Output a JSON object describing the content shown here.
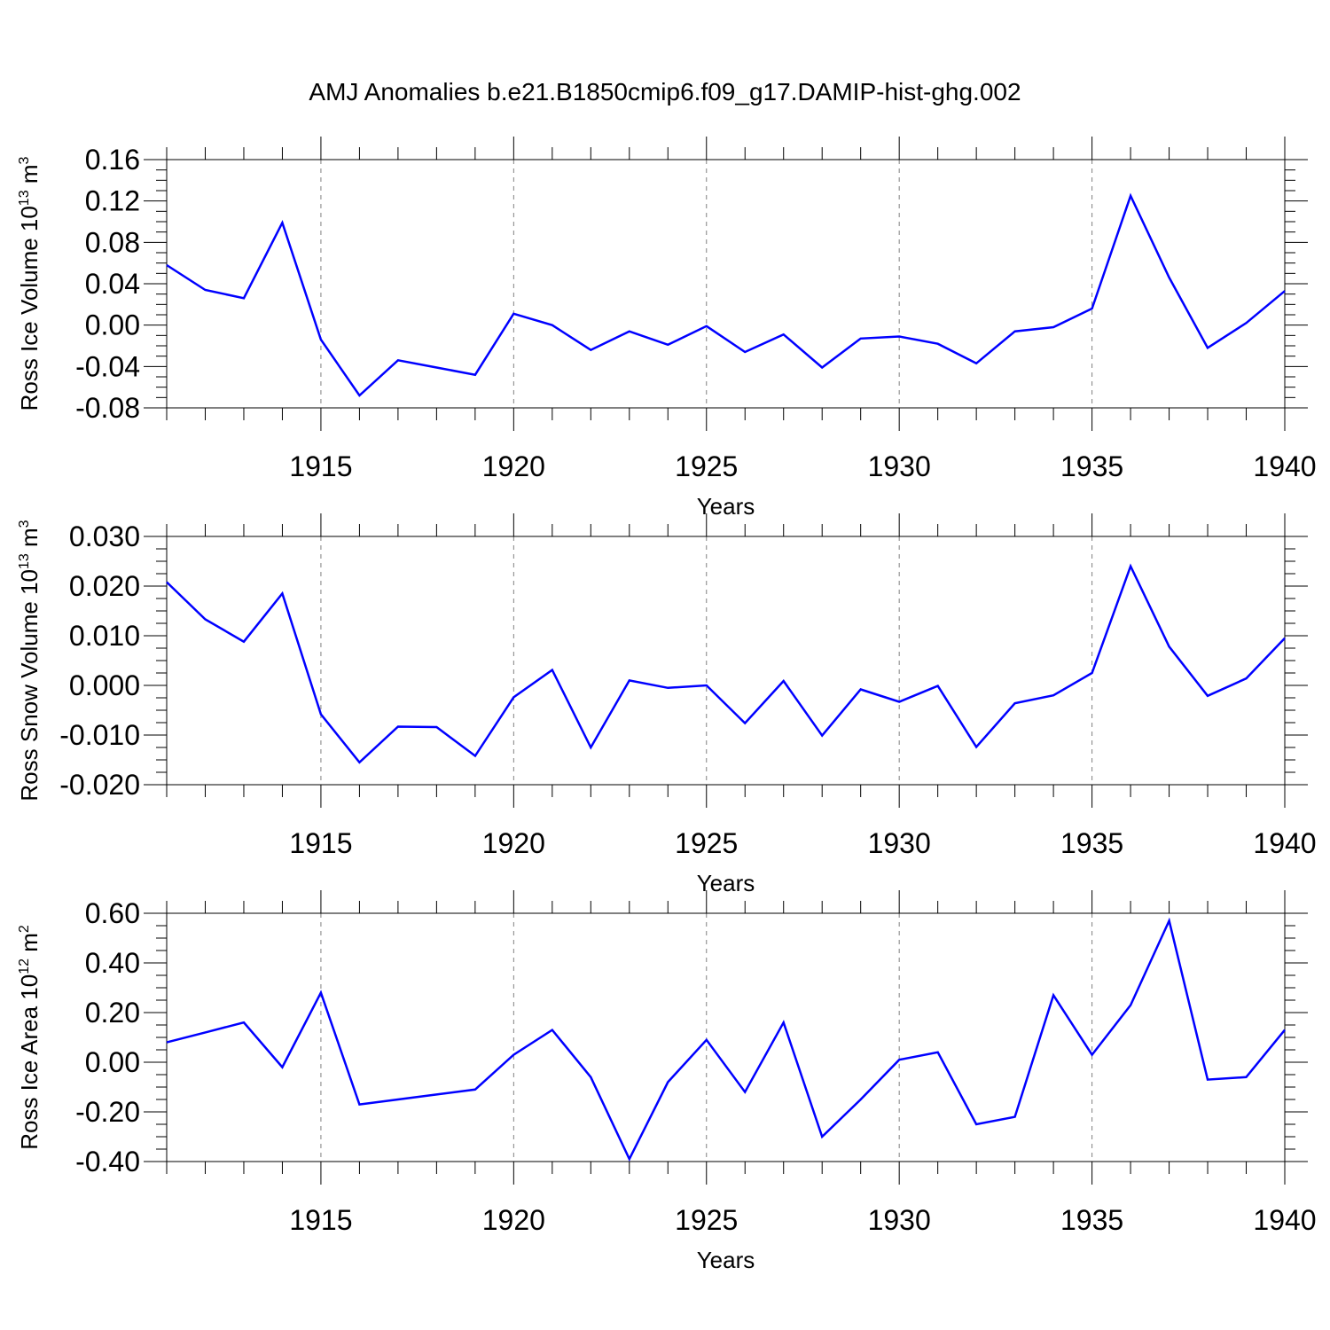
{
  "title": "AMJ Anomalies b.e21.B1850cmip6.f09_g17.DAMIP-hist-ghg.002",
  "colors": {
    "line": "#0000ff",
    "axis": "#000000",
    "grid": "#808080"
  },
  "chart_data": [
    {
      "type": "line",
      "ylabel": "Ross Ice Volume 10",
      "ylabel_sup": "13",
      "ylabel_unit": "m",
      "ylabel_unit_sup": "3",
      "xlabel": "Years",
      "xlim": [
        1911,
        1940
      ],
      "ylim": [
        -0.08,
        0.16
      ],
      "yticks": [
        -0.08,
        -0.04,
        0.0,
        0.04,
        0.08,
        0.12,
        0.16
      ],
      "ytick_labels": [
        "-0.08",
        "-0.04",
        "0.00",
        "0.04",
        "0.08",
        "0.12",
        "0.16"
      ],
      "xticks": [
        1915,
        1920,
        1925,
        1930,
        1935,
        1940
      ],
      "xtick_labels": [
        "1915",
        "1920",
        "1925",
        "1930",
        "1935",
        "1940"
      ],
      "grid": "vertical dashed at major x ticks",
      "x": [
        1911,
        1912,
        1913,
        1914,
        1915,
        1916,
        1917,
        1918,
        1919,
        1920,
        1921,
        1922,
        1923,
        1924,
        1925,
        1926,
        1927,
        1928,
        1929,
        1930,
        1931,
        1932,
        1933,
        1934,
        1935,
        1936,
        1937,
        1938,
        1939,
        1940
      ],
      "values": [
        0.058,
        0.034,
        0.026,
        0.099,
        -0.014,
        -0.068,
        -0.034,
        -0.041,
        -0.048,
        0.011,
        0.0,
        -0.024,
        -0.006,
        -0.019,
        -0.001,
        -0.026,
        -0.009,
        -0.041,
        -0.013,
        -0.011,
        -0.018,
        -0.037,
        -0.006,
        -0.002,
        0.016,
        0.125,
        0.046,
        -0.022,
        0.002,
        0.033
      ]
    },
    {
      "type": "line",
      "ylabel": "Ross Snow Volume 10",
      "ylabel_sup": "13",
      "ylabel_unit": "m",
      "ylabel_unit_sup": "3",
      "xlabel": "Years",
      "xlim": [
        1911,
        1940
      ],
      "ylim": [
        -0.02,
        0.03
      ],
      "yticks": [
        -0.02,
        -0.01,
        0.0,
        0.01,
        0.02,
        0.03
      ],
      "ytick_labels": [
        "-0.020",
        "-0.010",
        "0.000",
        "0.010",
        "0.020",
        "0.030"
      ],
      "xticks": [
        1915,
        1920,
        1925,
        1930,
        1935,
        1940
      ],
      "xtick_labels": [
        "1915",
        "1920",
        "1925",
        "1930",
        "1935",
        "1940"
      ],
      "grid": "vertical dashed at major x ticks",
      "x": [
        1911,
        1912,
        1913,
        1914,
        1915,
        1916,
        1917,
        1918,
        1919,
        1920,
        1921,
        1922,
        1923,
        1924,
        1925,
        1926,
        1927,
        1928,
        1929,
        1930,
        1931,
        1932,
        1933,
        1934,
        1935,
        1936,
        1937,
        1938,
        1939,
        1940
      ],
      "values": [
        0.0208,
        0.0133,
        0.0088,
        0.0185,
        -0.0058,
        -0.0155,
        -0.0083,
        -0.0084,
        -0.0142,
        -0.0024,
        0.0031,
        -0.0125,
        0.001,
        -0.0005,
        0.0,
        -0.0076,
        0.0009,
        -0.0101,
        -0.0008,
        -0.0033,
        -0.0001,
        -0.0124,
        -0.0036,
        -0.002,
        0.0025,
        0.024,
        0.0078,
        -0.0021,
        0.0014,
        0.0095
      ]
    },
    {
      "type": "line",
      "ylabel": "Ross Ice Area 10",
      "ylabel_sup": "12",
      "ylabel_unit": "m",
      "ylabel_unit_sup": "2",
      "xlabel": "Years",
      "xlim": [
        1911,
        1940
      ],
      "ylim": [
        -0.4,
        0.6
      ],
      "yticks": [
        -0.4,
        -0.2,
        0.0,
        0.2,
        0.4,
        0.6
      ],
      "ytick_labels": [
        "-0.40",
        "-0.20",
        "0.00",
        "0.20",
        "0.40",
        "0.60"
      ],
      "xticks": [
        1915,
        1920,
        1925,
        1930,
        1935,
        1940
      ],
      "xtick_labels": [
        "1915",
        "1920",
        "1925",
        "1930",
        "1935",
        "1940"
      ],
      "grid": "vertical dashed at major x ticks",
      "x": [
        1911,
        1912,
        1913,
        1914,
        1915,
        1916,
        1917,
        1918,
        1919,
        1920,
        1921,
        1922,
        1923,
        1924,
        1925,
        1926,
        1927,
        1928,
        1929,
        1930,
        1931,
        1932,
        1933,
        1934,
        1935,
        1936,
        1937,
        1938,
        1939,
        1940
      ],
      "values": [
        0.08,
        0.12,
        0.16,
        -0.02,
        0.28,
        -0.17,
        -0.15,
        -0.13,
        -0.11,
        0.03,
        0.13,
        -0.06,
        -0.39,
        -0.08,
        0.09,
        -0.12,
        0.16,
        -0.3,
        -0.15,
        0.01,
        0.04,
        -0.25,
        -0.22,
        0.27,
        0.03,
        0.23,
        0.57,
        -0.07,
        -0.06,
        0.13
      ]
    }
  ]
}
